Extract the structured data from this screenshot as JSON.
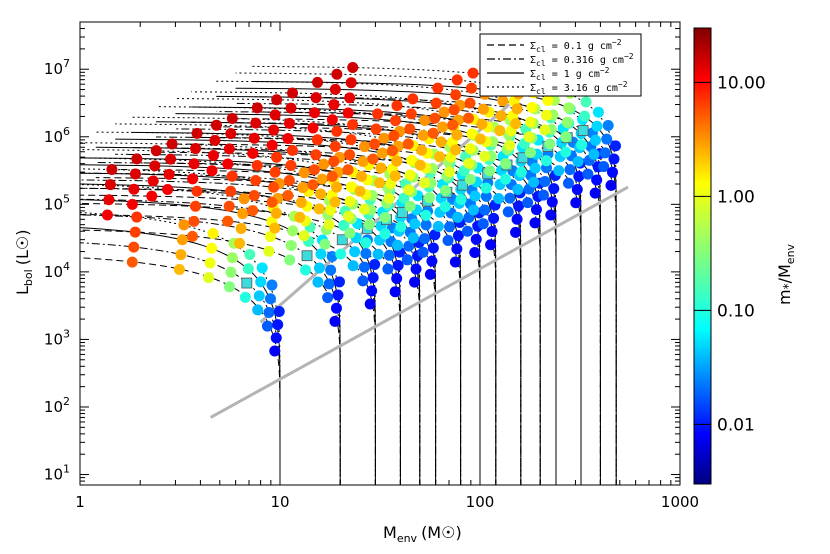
{
  "chart_data": {
    "type": "scatter",
    "title": "",
    "xlabel": "M_env (M_sun)",
    "ylabel": "L_bol (L_sun)",
    "x_scale": "log",
    "y_scale": "log",
    "xlim": [
      1,
      1000
    ],
    "ylim": [
      7,
      50000000
    ],
    "x_ticks": [
      "1",
      "10",
      "100",
      "1000"
    ],
    "y_ticks": [
      "10^1",
      "10^2",
      "10^3",
      "10^4",
      "10^5",
      "10^6",
      "10^7"
    ],
    "legend": {
      "placement": "top-right",
      "entries": [
        {
          "label": "Σcl = 0.1 g cm^-2",
          "style": "dashed"
        },
        {
          "label": "Σcl = 0.316 g cm^-2",
          "style": "dash-dot"
        },
        {
          "label": "Σcl = 1 g cm^-2",
          "style": "solid"
        },
        {
          "label": "Σcl = 3.16 g cm^-2",
          "style": "dotted"
        }
      ]
    },
    "colorbar": {
      "label": "m*/M_env",
      "scale": "log",
      "range": [
        0.003,
        30
      ],
      "ticks": [
        "10.00",
        "1.00",
        "0.10",
        "0.01"
      ]
    },
    "tracks": {
      "initial_core_masses": [
        10,
        20,
        30,
        40,
        50,
        60,
        80,
        100,
        120,
        160,
        200,
        240,
        320,
        400,
        480
      ],
      "sigma_values": [
        0.1,
        0.316,
        1,
        3.16
      ]
    },
    "markers": {
      "circle": "protostellar models colored by m*/M_env",
      "triangle": "models highlighted with yellow triangles",
      "square": "models highlighted with cyan squares"
    },
    "gray_lines": [
      {
        "from": [
          4.5,
          70
        ],
        "to": [
          550,
          180000
        ]
      },
      {
        "from": [
          8,
          1800
        ],
        "to": [
          140,
          3000000
        ]
      }
    ]
  },
  "labels": {
    "xlabel_main": "M",
    "xlabel_sub": "env",
    "xlabel_unit": "(M",
    "xlabel_close": ")",
    "ylabel_main": "L",
    "ylabel_sub": "bol",
    "ylabel_unit": "(L",
    "ylabel_close": ")",
    "cb_main": "m",
    "cb_star": "*",
    "cb_mid": "/M",
    "cb_sub": "env",
    "leg_sigma": "Σ",
    "leg_cl": "cl",
    "leg_vals": [
      " = 0.1 g cm",
      " = 0.316 g cm",
      " = 1 g cm",
      " = 3.16 g cm"
    ],
    "leg_exp": "−2"
  },
  "colors": {
    "colormap": "jet",
    "triangle_fill": "#e6e61e",
    "square_fill": "#3cdcdc",
    "gray_line": "#b4b4b4"
  }
}
